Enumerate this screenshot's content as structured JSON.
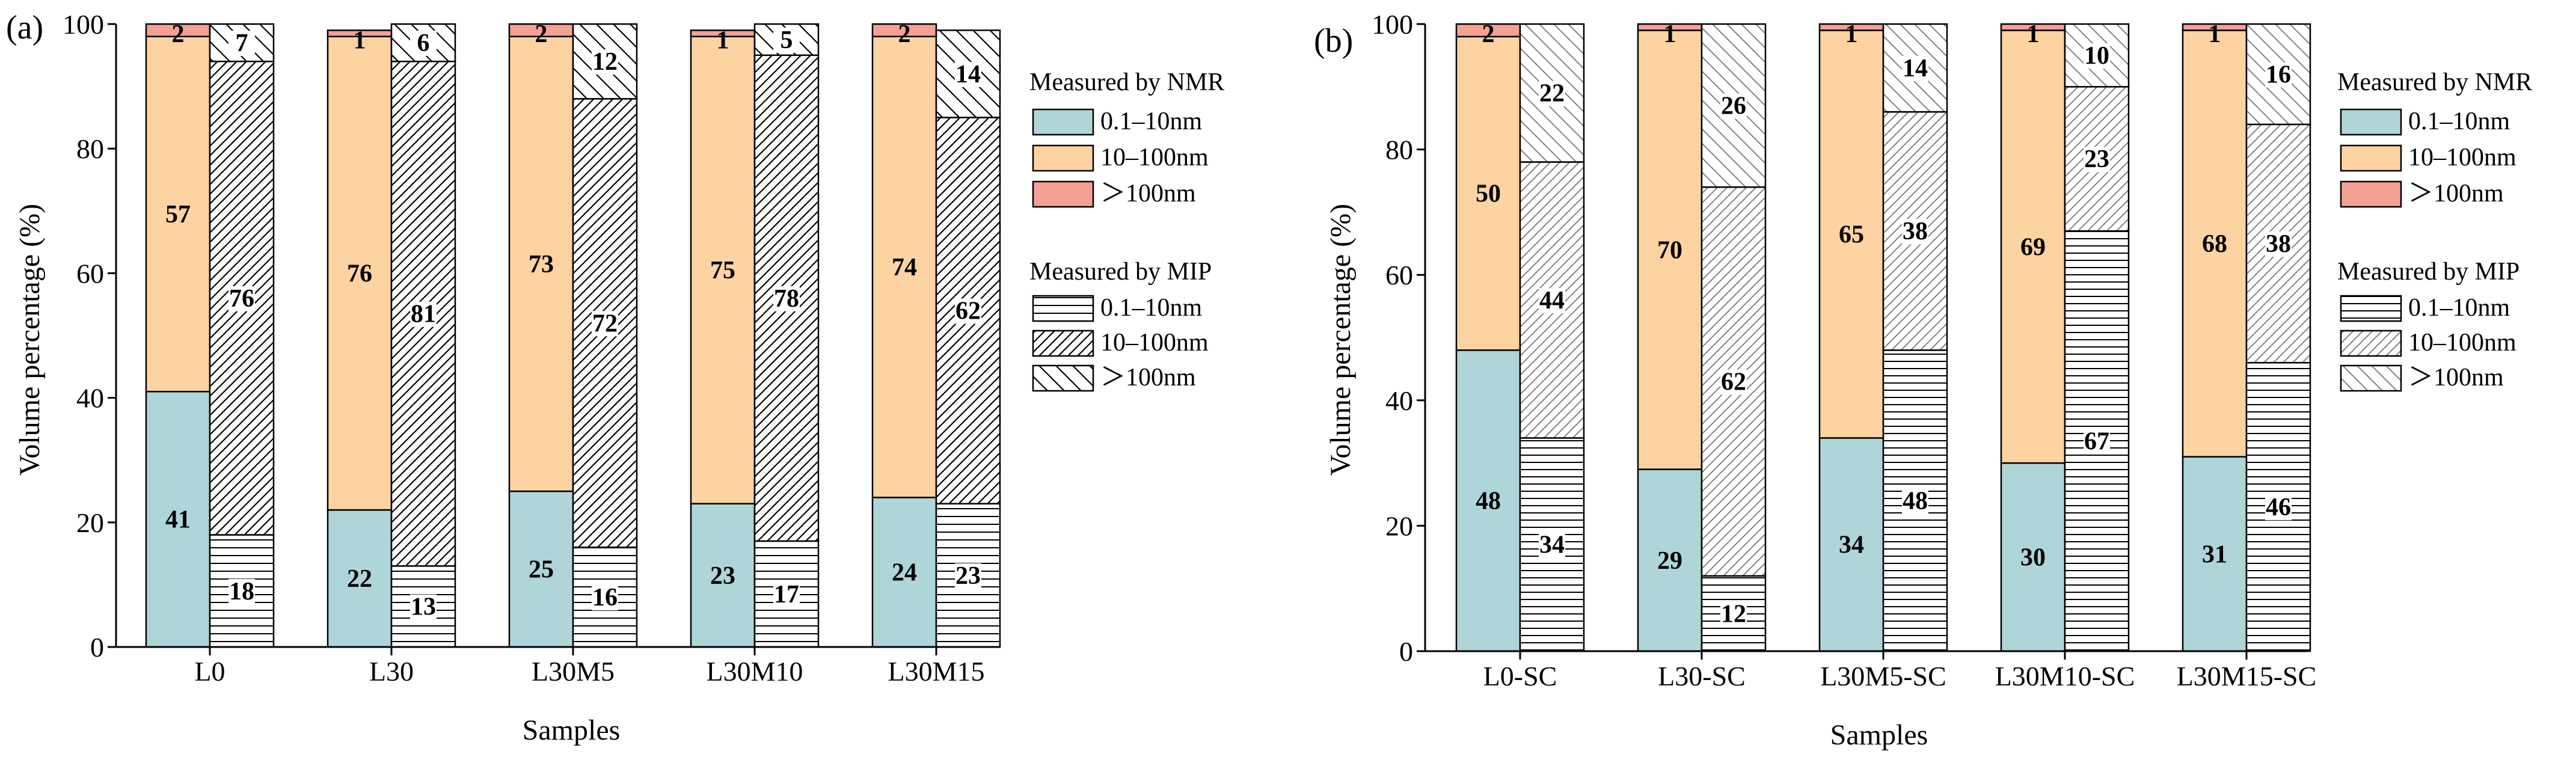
{
  "colors": {
    "nmr_small": "#aed5d8",
    "nmr_mid": "#fcd3a1",
    "nmr_large": "#f4a093",
    "mip_bg": "#ffffff",
    "axis": "#000000"
  },
  "legend": {
    "nmr_title": "Measured by NMR",
    "mip_title": "Measured by MIP",
    "items": [
      "0.1–10nm",
      "10–100nm",
      "＞100nm"
    ]
  },
  "chart_data": [
    {
      "type": "bar",
      "stacked": true,
      "panel_label": "(a)",
      "title": "",
      "xlabel": "Samples",
      "ylabel": "Volume percentage (%)",
      "ylim": [
        0,
        100
      ],
      "yticks": [
        0,
        20,
        40,
        60,
        80,
        100
      ],
      "categories": [
        "L0",
        "L30",
        "L30M5",
        "L30M10",
        "L30M15"
      ],
      "series": [
        {
          "name": "NMR 0.1–10nm",
          "group": "NMR",
          "values": [
            41,
            22,
            25,
            23,
            24
          ]
        },
        {
          "name": "NMR 10–100nm",
          "group": "NMR",
          "values": [
            57,
            76,
            73,
            75,
            74
          ]
        },
        {
          "name": "NMR ＞100nm",
          "group": "NMR",
          "values": [
            2,
            1,
            2,
            1,
            2
          ]
        },
        {
          "name": "MIP 0.1–10nm",
          "group": "MIP",
          "values": [
            18,
            13,
            16,
            17,
            23
          ]
        },
        {
          "name": "MIP 10–100nm",
          "group": "MIP",
          "values": [
            76,
            81,
            72,
            78,
            62
          ]
        },
        {
          "name": "MIP ＞100nm",
          "group": "MIP",
          "values": [
            7,
            6,
            12,
            5,
            14
          ]
        }
      ]
    },
    {
      "type": "bar",
      "stacked": true,
      "panel_label": "(b)",
      "title": "",
      "xlabel": "Samples",
      "ylabel": "Volume percentage (%)",
      "ylim": [
        0,
        100
      ],
      "yticks": [
        0,
        20,
        40,
        60,
        80,
        100
      ],
      "categories": [
        "L0-SC",
        "L30-SC",
        "L30M5-SC",
        "L30M10-SC",
        "L30M15-SC"
      ],
      "series": [
        {
          "name": "NMR 0.1–10nm",
          "group": "NMR",
          "values": [
            48,
            29,
            34,
            30,
            31
          ]
        },
        {
          "name": "NMR 10–100nm",
          "group": "NMR",
          "values": [
            50,
            70,
            65,
            69,
            68
          ]
        },
        {
          "name": "NMR ＞100nm",
          "group": "NMR",
          "values": [
            2,
            1,
            1,
            1,
            1
          ]
        },
        {
          "name": "MIP 0.1–10nm",
          "group": "MIP",
          "values": [
            34,
            12,
            48,
            67,
            46
          ]
        },
        {
          "name": "MIP 10–100nm",
          "group": "MIP",
          "values": [
            44,
            62,
            38,
            23,
            38
          ]
        },
        {
          "name": "MIP ＞100nm",
          "group": "MIP",
          "values": [
            22,
            26,
            14,
            10,
            16
          ]
        }
      ]
    }
  ]
}
